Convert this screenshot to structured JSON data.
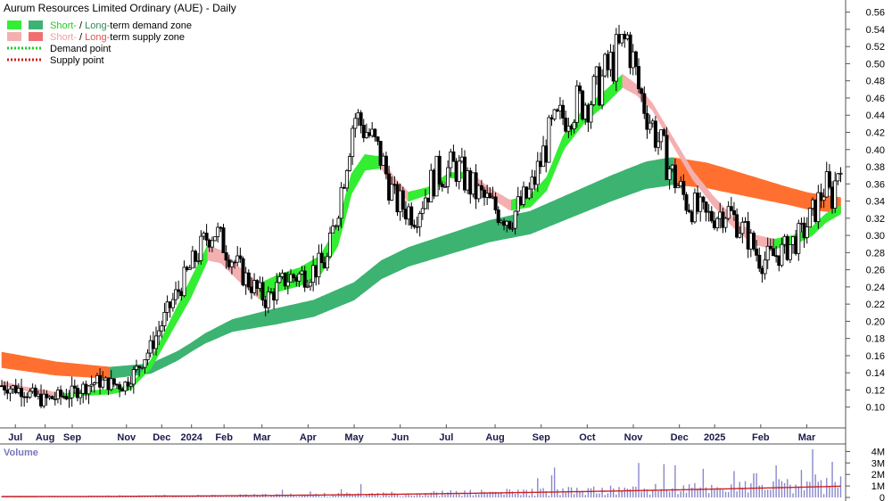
{
  "chart_data": {
    "type": "candlestick",
    "title": "Aurum Resources Limited Ordinary (AUE) - Daily",
    "legend": [
      {
        "swatches": [
          "#33ee33",
          "#3cb371"
        ],
        "parts": [
          {
            "text": "Short-",
            "color": "#22cc22"
          },
          {
            "text": " / ",
            "color": "#000000"
          },
          {
            "text": "Long-",
            "color": "#2e8b57"
          },
          {
            "text": "term demand zone",
            "color": "#000000"
          }
        ]
      },
      {
        "swatches": [
          "#f4b0b0",
          "#f07070"
        ],
        "parts": [
          {
            "text": "Short-",
            "color": "#f0a0a0"
          },
          {
            "text": " / ",
            "color": "#000000"
          },
          {
            "text": "Long-",
            "color": "#e05050"
          },
          {
            "text": "term supply zone",
            "color": "#000000"
          }
        ]
      },
      {
        "dotted": "#22cc22",
        "parts": [
          {
            "text": "Demand point",
            "color": "#000000"
          }
        ]
      },
      {
        "dotted": "#cc2222",
        "parts": [
          {
            "text": "Supply point",
            "color": "#000000"
          }
        ]
      }
    ],
    "y_axis": {
      "min": 0.08,
      "max": 0.57,
      "ticks": [
        "0.56",
        "0.54",
        "0.52",
        "0.50",
        "0.48",
        "0.46",
        "0.44",
        "0.42",
        "0.40",
        "0.38",
        "0.36",
        "0.34",
        "0.32",
        "0.30",
        "0.28",
        "0.26",
        "0.24",
        "0.22",
        "0.20",
        "0.18",
        "0.16",
        "0.14",
        "0.12",
        "0.10"
      ]
    },
    "x_months": [
      {
        "label": "Jul",
        "day": 10
      },
      {
        "label": "Aug",
        "day": 32
      },
      {
        "label": "Sep",
        "day": 52
      },
      {
        "label": "Nov",
        "day": 92
      },
      {
        "label": "Dec",
        "day": 118
      },
      {
        "label": "2024",
        "day": 140
      },
      {
        "label": "Feb",
        "day": 164
      },
      {
        "label": "Mar",
        "day": 192
      },
      {
        "label": "Apr",
        "day": 226
      },
      {
        "label": "May",
        "day": 260
      },
      {
        "label": "Jun",
        "day": 294
      },
      {
        "label": "Jul",
        "day": 328
      },
      {
        "label": "Aug",
        "day": 364
      },
      {
        "label": "Sep",
        "day": 398
      },
      {
        "label": "Oct",
        "day": 432
      },
      {
        "label": "Nov",
        "day": 466
      },
      {
        "label": "Dec",
        "day": 500
      },
      {
        "label": "2025",
        "day": 526
      },
      {
        "label": "Feb",
        "day": 560
      },
      {
        "label": "Mar",
        "day": 594
      }
    ],
    "total_days": 620,
    "price_path": [
      [
        0,
        0.125
      ],
      [
        15,
        0.12
      ],
      [
        30,
        0.108
      ],
      [
        50,
        0.115
      ],
      [
        70,
        0.13
      ],
      [
        90,
        0.125
      ],
      [
        100,
        0.145
      ],
      [
        110,
        0.17
      ],
      [
        125,
        0.22
      ],
      [
        140,
        0.265
      ],
      [
        152,
        0.3
      ],
      [
        158,
        0.305
      ],
      [
        165,
        0.285
      ],
      [
        180,
        0.25
      ],
      [
        195,
        0.225
      ],
      [
        210,
        0.25
      ],
      [
        225,
        0.255
      ],
      [
        240,
        0.27
      ],
      [
        250,
        0.35
      ],
      [
        260,
        0.44
      ],
      [
        270,
        0.42
      ],
      [
        280,
        0.39
      ],
      [
        290,
        0.34
      ],
      [
        305,
        0.325
      ],
      [
        320,
        0.37
      ],
      [
        335,
        0.38
      ],
      [
        350,
        0.35
      ],
      [
        365,
        0.33
      ],
      [
        375,
        0.32
      ],
      [
        390,
        0.35
      ],
      [
        405,
        0.42
      ],
      [
        420,
        0.45
      ],
      [
        435,
        0.46
      ],
      [
        450,
        0.5
      ],
      [
        462,
        0.53
      ],
      [
        470,
        0.47
      ],
      [
        482,
        0.42
      ],
      [
        495,
        0.37
      ],
      [
        505,
        0.34
      ],
      [
        520,
        0.32
      ],
      [
        535,
        0.33
      ],
      [
        550,
        0.3
      ],
      [
        560,
        0.27
      ],
      [
        575,
        0.28
      ],
      [
        590,
        0.3
      ],
      [
        600,
        0.33
      ],
      [
        608,
        0.36
      ],
      [
        612,
        0.34
      ],
      [
        616,
        0.37
      ],
      [
        619,
        0.395
      ]
    ],
    "ema_short": [
      [
        0,
        0.128
      ],
      [
        15,
        0.122
      ],
      [
        30,
        0.118
      ],
      [
        45,
        0.113
      ],
      [
        60,
        0.116
      ],
      [
        80,
        0.118
      ],
      [
        95,
        0.123
      ],
      [
        110,
        0.15
      ],
      [
        125,
        0.195
      ],
      [
        140,
        0.24
      ],
      [
        152,
        0.28
      ],
      [
        162,
        0.275
      ],
      [
        175,
        0.255
      ],
      [
        190,
        0.235
      ],
      [
        205,
        0.245
      ],
      [
        220,
        0.252
      ],
      [
        235,
        0.265
      ],
      [
        248,
        0.3
      ],
      [
        258,
        0.36
      ],
      [
        268,
        0.385
      ],
      [
        280,
        0.385
      ],
      [
        290,
        0.36
      ],
      [
        300,
        0.345
      ],
      [
        315,
        0.352
      ],
      [
        330,
        0.37
      ],
      [
        345,
        0.37
      ],
      [
        360,
        0.35
      ],
      [
        375,
        0.335
      ],
      [
        390,
        0.34
      ],
      [
        402,
        0.36
      ],
      [
        415,
        0.41
      ],
      [
        430,
        0.44
      ],
      [
        445,
        0.46
      ],
      [
        458,
        0.48
      ],
      [
        468,
        0.47
      ],
      [
        480,
        0.45
      ],
      [
        495,
        0.41
      ],
      [
        510,
        0.37
      ],
      [
        525,
        0.34
      ],
      [
        540,
        0.315
      ],
      [
        555,
        0.295
      ],
      [
        570,
        0.29
      ],
      [
        585,
        0.295
      ],
      [
        598,
        0.305
      ],
      [
        608,
        0.32
      ],
      [
        619,
        0.33
      ]
    ],
    "short_width": [
      [
        0,
        0.004
      ],
      [
        100,
        0.006
      ],
      [
        140,
        0.022
      ],
      [
        160,
        0.015
      ],
      [
        255,
        0.025
      ],
      [
        275,
        0.015
      ],
      [
        330,
        0.006
      ],
      [
        420,
        0.018
      ],
      [
        460,
        0.015
      ],
      [
        480,
        0.008
      ],
      [
        540,
        0.012
      ],
      [
        619,
        0.01
      ]
    ],
    "ema_long": [
      [
        0,
        0.155
      ],
      [
        40,
        0.145
      ],
      [
        80,
        0.14
      ],
      [
        110,
        0.145
      ],
      [
        130,
        0.16
      ],
      [
        150,
        0.18
      ],
      [
        170,
        0.195
      ],
      [
        200,
        0.205
      ],
      [
        230,
        0.215
      ],
      [
        260,
        0.235
      ],
      [
        280,
        0.26
      ],
      [
        300,
        0.275
      ],
      [
        330,
        0.29
      ],
      [
        360,
        0.305
      ],
      [
        390,
        0.315
      ],
      [
        420,
        0.335
      ],
      [
        450,
        0.355
      ],
      [
        475,
        0.37
      ],
      [
        495,
        0.375
      ],
      [
        520,
        0.37
      ],
      [
        545,
        0.36
      ],
      [
        570,
        0.35
      ],
      [
        595,
        0.34
      ],
      [
        619,
        0.335
      ]
    ],
    "long_width": [
      [
        0,
        0.018
      ],
      [
        100,
        0.012
      ],
      [
        140,
        0.01
      ],
      [
        200,
        0.018
      ],
      [
        300,
        0.022
      ],
      [
        420,
        0.028
      ],
      [
        490,
        0.032
      ],
      [
        530,
        0.028
      ],
      [
        580,
        0.02
      ],
      [
        619,
        0.018
      ]
    ],
    "candle_count": 300,
    "volume": {
      "label": "Volume",
      "ticks": [
        "4M",
        "3M",
        "2M",
        "1M",
        "0"
      ],
      "max": 4.5,
      "bar_color": "#8888cc",
      "ma_color": "#cc2222",
      "spikes": [
        [
          598,
          4.2
        ],
        [
          470,
          3.0
        ],
        [
          572,
          2.8
        ],
        [
          518,
          2.5
        ],
        [
          540,
          2.3
        ],
        [
          556,
          2.1
        ],
        [
          408,
          2.6
        ],
        [
          488,
          2.9
        ],
        [
          600,
          2.0
        ],
        [
          612,
          3.1
        ],
        [
          590,
          2.4
        ]
      ]
    }
  }
}
